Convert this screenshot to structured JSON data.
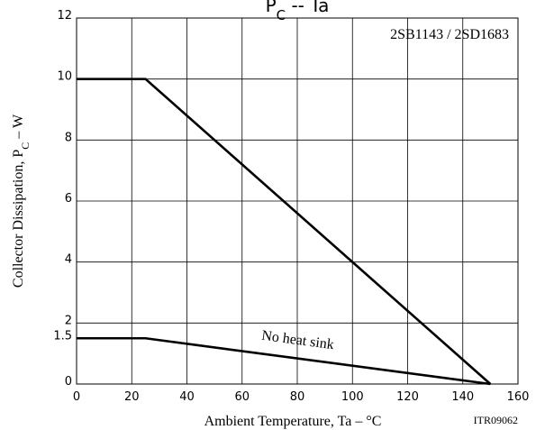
{
  "chart_data": {
    "type": "line",
    "title_main": "P",
    "title_sub": "C",
    "title_rest": " -- Ta",
    "part_label": "2SB1143 / 2SD1683",
    "figure_code": "ITR09062",
    "xlabel": "Ambient Temperature, Ta  –  °C",
    "ylabel_main": "Collector Dissipation, P",
    "ylabel_sub": "C",
    "ylabel_rest": "  –  W",
    "xlim": [
      0,
      160
    ],
    "ylim": [
      0,
      12
    ],
    "x_ticks": [
      0,
      20,
      40,
      60,
      80,
      100,
      120,
      140,
      160
    ],
    "y_ticks": [
      0,
      1.5,
      2,
      4,
      6,
      8,
      10,
      12
    ],
    "y_gridlines": [
      2,
      4,
      6,
      8,
      10,
      12
    ],
    "x_gridlines": [
      20,
      40,
      60,
      80,
      100,
      120,
      140
    ],
    "grid": true,
    "series": [
      {
        "name": "",
        "points": [
          [
            0,
            10
          ],
          [
            25,
            10
          ],
          [
            150,
            0
          ]
        ]
      },
      {
        "name": "No heat sink",
        "points": [
          [
            0,
            1.5
          ],
          [
            25,
            1.5
          ],
          [
            150,
            0
          ]
        ]
      }
    ],
    "annotations": [
      {
        "text": "No heat sink",
        "x": 80,
        "y": 1.3
      }
    ]
  }
}
